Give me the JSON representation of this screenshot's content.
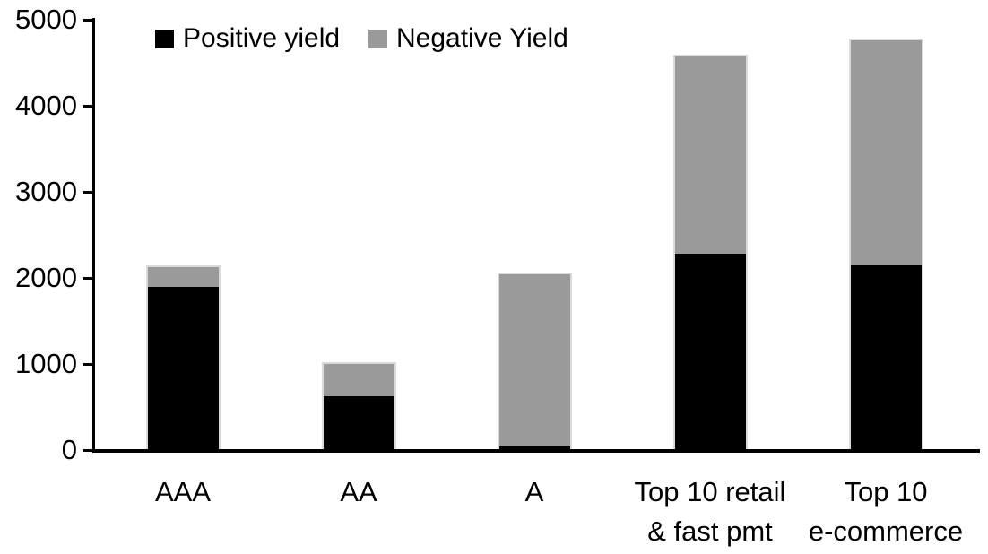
{
  "chart_data": {
    "type": "bar",
    "stacked": true,
    "title": "",
    "categories": [
      "AAA",
      "AA",
      "A",
      "Top 10 retail\n& fast pmt",
      "Top 10\ne-commerce"
    ],
    "series": [
      {
        "name": "Positive yield",
        "color": "#000000",
        "values": [
          1900,
          620,
          40,
          2280,
          2150
        ]
      },
      {
        "name": "Negative Yield",
        "color": "#9a9a9a",
        "values": [
          230,
          380,
          2000,
          2290,
          2610
        ]
      }
    ],
    "totals": [
      2130,
      1000,
      2040,
      4570,
      4760
    ],
    "xlabel": "",
    "ylabel": "",
    "ylim": [
      0,
      5000
    ],
    "yticks": [
      0,
      1000,
      2000,
      3000,
      4000,
      5000
    ],
    "grid": false,
    "legend_position": "top-left-inside"
  },
  "colors": {
    "background": "#ffffff",
    "axis": "#000000",
    "bar_border": "#dadada",
    "positive": "#000000",
    "negative": "#9a9a9a"
  }
}
